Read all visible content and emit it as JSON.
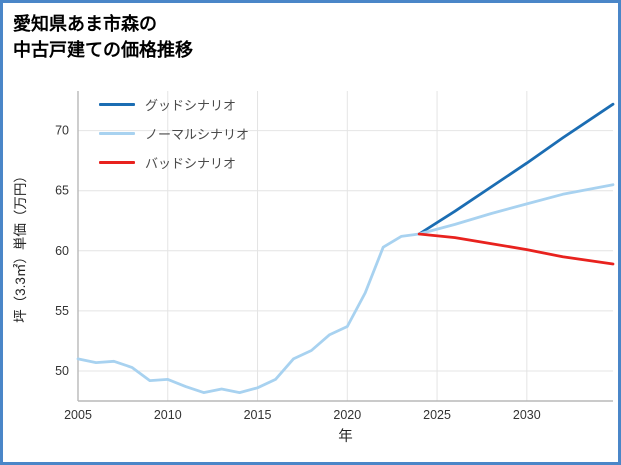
{
  "frame": {
    "border_color": "#4a86c8",
    "background": "#ffffff"
  },
  "title": {
    "line1": "愛知県あま市森の",
    "line2": "中古戸建ての価格推移"
  },
  "chart_data": {
    "type": "line",
    "title": "愛知県あま市森の中古戸建ての価格推移",
    "xlabel": "年",
    "ylabel": "坪（3.3㎡）単価（万円）",
    "xlim": [
      2005,
      2034.8
    ],
    "ylim": [
      47.5,
      73.3
    ],
    "xticks": [
      2005,
      2010,
      2015,
      2020,
      2025,
      2030
    ],
    "yticks": [
      50,
      55,
      60,
      65,
      70
    ],
    "grid": true,
    "legend_position": "upper-left",
    "grid_color": "#e4e4e4",
    "axis_color": "#b8b8b8",
    "tick_label_color": "#333333",
    "series": [
      {
        "key": "good",
        "name": "グッドシナリオ",
        "color": "#1b6db3",
        "x": [
          2024,
          2026,
          2028,
          2030,
          2032,
          2034.8
        ],
        "values": [
          61.4,
          63.3,
          65.3,
          67.3,
          69.4,
          72.2
        ]
      },
      {
        "key": "normal",
        "name": "ノーマルシナリオ",
        "color": "#a8d2f0",
        "x": [
          2005,
          2006,
          2007,
          2008,
          2009,
          2010,
          2011,
          2012,
          2013,
          2014,
          2015,
          2016,
          2017,
          2018,
          2019,
          2020,
          2021,
          2022,
          2023,
          2024,
          2026,
          2028,
          2030,
          2032,
          2034.8
        ],
        "values": [
          51.0,
          50.7,
          50.8,
          50.3,
          49.2,
          49.3,
          48.7,
          48.2,
          48.5,
          48.2,
          48.6,
          49.3,
          51.0,
          51.7,
          53.0,
          53.7,
          56.5,
          60.3,
          61.2,
          61.4,
          62.2,
          63.1,
          63.9,
          64.7,
          65.5
        ]
      },
      {
        "key": "bad",
        "name": "バッドシナリオ",
        "color": "#e8221e",
        "x": [
          2024,
          2026,
          2028,
          2030,
          2032,
          2034.8
        ],
        "values": [
          61.4,
          61.1,
          60.6,
          60.1,
          59.5,
          58.9
        ]
      }
    ]
  }
}
